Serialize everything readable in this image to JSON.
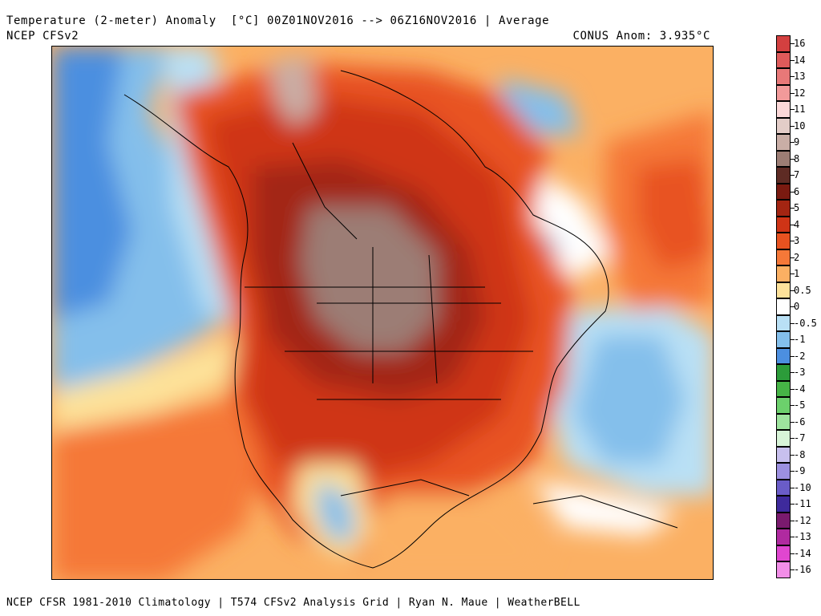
{
  "header": {
    "title": "Temperature (2-meter) Anomaly  [°C] 00Z01NOV2016 --> 06Z16NOV2016 | Average",
    "source": "NCEP CFSv2",
    "conus_anom": "CONUS Anom: 3.935°C"
  },
  "footer": {
    "credits": "NCEP CFSR 1981-2010 Climatology | T574 CFSv2 Analysis Grid | Ryan N. Maue | WeatherBELL"
  },
  "legend": {
    "entries": [
      {
        "label": "16",
        "color": "#d34040"
      },
      {
        "label": "14",
        "color": "#de5a5a"
      },
      {
        "label": "13",
        "color": "#e87878"
      },
      {
        "label": "12",
        "color": "#f29a9a"
      },
      {
        "label": "11",
        "color": "#fbd8d8"
      },
      {
        "label": "10",
        "color": "#e3cdc8"
      },
      {
        "label": "9",
        "color": "#c9aea6"
      },
      {
        "label": "8",
        "color": "#9c7d74"
      },
      {
        "label": "7",
        "color": "#5e2b24"
      },
      {
        "label": "6",
        "color": "#7a1a10"
      },
      {
        "label": "5",
        "color": "#a32512"
      },
      {
        "label": "4",
        "color": "#cf3416"
      },
      {
        "label": "3",
        "color": "#e85220"
      },
      {
        "label": "2",
        "color": "#f57838"
      },
      {
        "label": "1",
        "color": "#fbb063"
      },
      {
        "label": "0.5",
        "color": "#fde29a"
      },
      {
        "label": "0",
        "color": "#ffffff"
      },
      {
        "label": "-0.5",
        "color": "#b9e0f5"
      },
      {
        "label": "-1",
        "color": "#84bfeb"
      },
      {
        "label": "-2",
        "color": "#4c8fe0"
      },
      {
        "label": "-3",
        "color": "#2c9c3a"
      },
      {
        "label": "-4",
        "color": "#46b446"
      },
      {
        "label": "-5",
        "color": "#6cd06c"
      },
      {
        "label": "-6",
        "color": "#9ee49e"
      },
      {
        "label": "-7",
        "color": "#d8f4d8"
      },
      {
        "label": "-8",
        "color": "#c8c0ee"
      },
      {
        "label": "-9",
        "color": "#9c90e0"
      },
      {
        "label": "-10",
        "color": "#6a5cc8"
      },
      {
        "label": "-11",
        "color": "#3e2a9c"
      },
      {
        "label": "-12",
        "color": "#7a1a6e"
      },
      {
        "label": "-13",
        "color": "#b02aa0"
      },
      {
        "label": "-14",
        "color": "#e046d0"
      },
      {
        "label": "-16",
        "color": "#f28ee8"
      }
    ]
  }
}
